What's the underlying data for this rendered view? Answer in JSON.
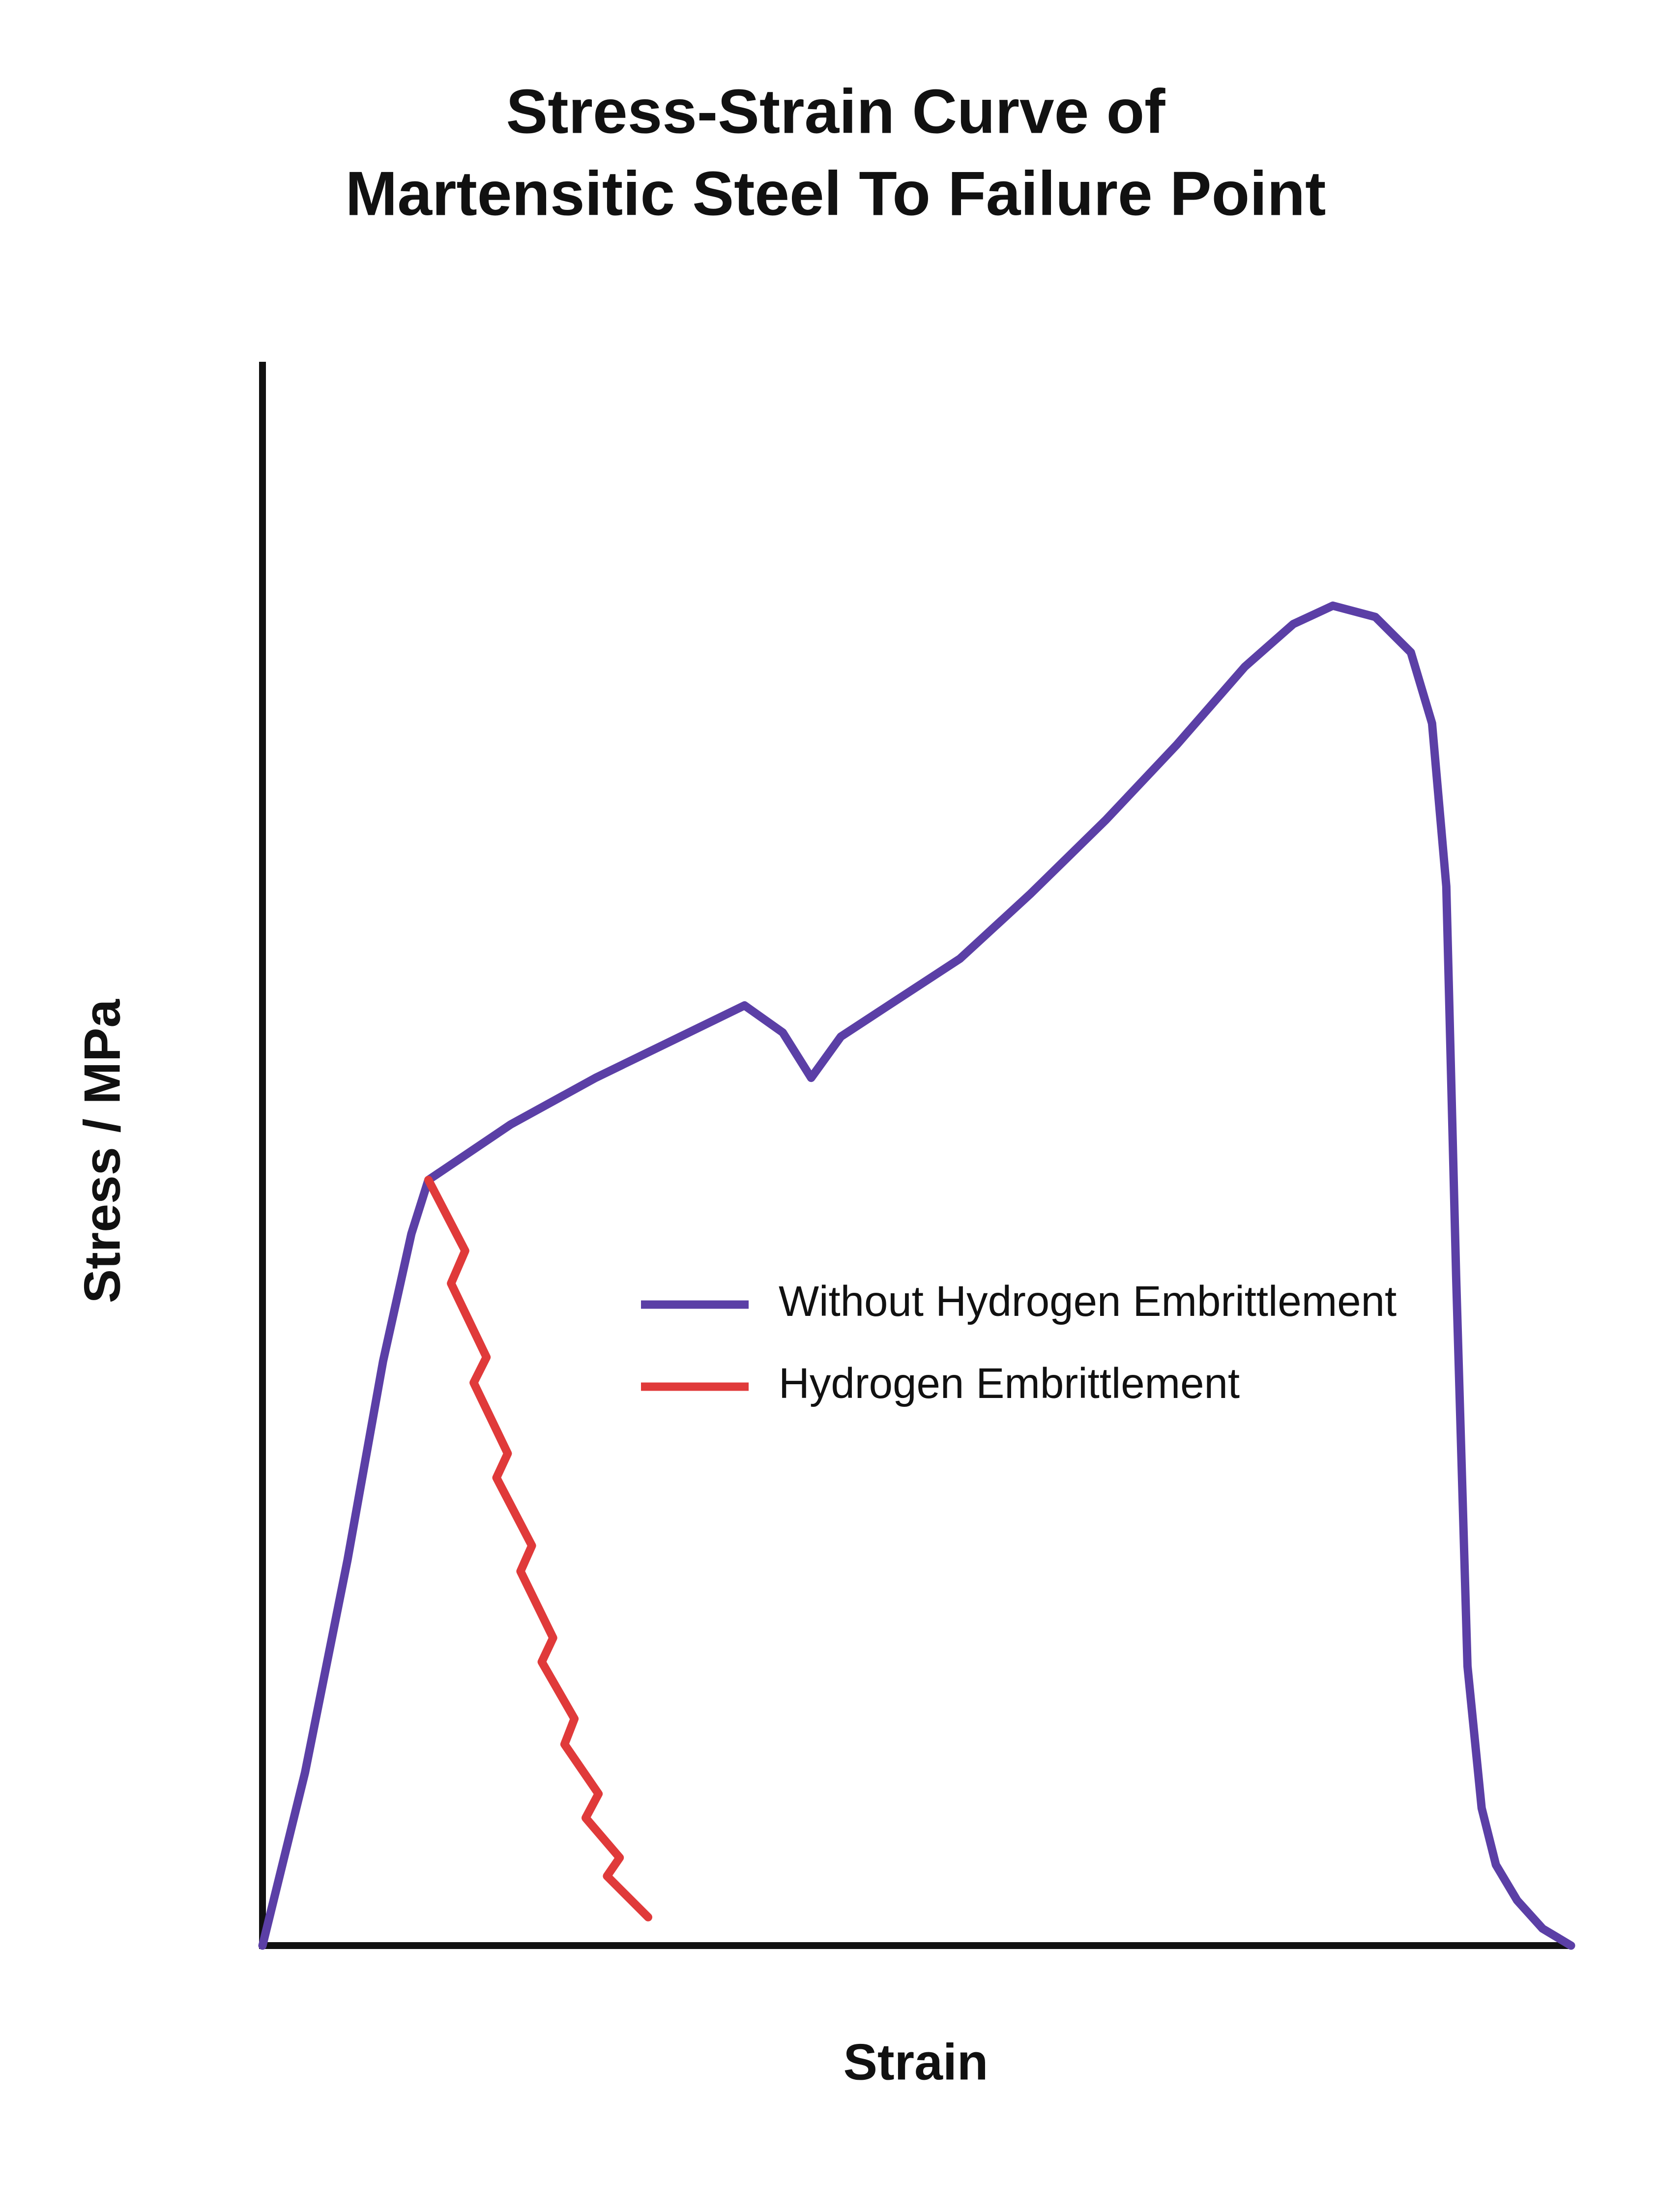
{
  "chart_data": {
    "type": "line",
    "title": [
      "Stress-Strain Curve of",
      "Martensitic Steel To Failure Point"
    ],
    "xlabel": "Strain",
    "ylabel": "Stress / MPa",
    "xlim": [
      0,
      100
    ],
    "ylim": [
      0,
      100
    ],
    "grid": false,
    "legend": "center",
    "series": [
      {
        "name": "Without Hydrogen Embrittlement",
        "color": "#5b3fa6",
        "x": [
          0,
          3.25,
          6.5,
          9.21,
          11.38,
          12.68,
          18.96,
          25.46,
          36.84,
          39.76,
          41.93,
          44.2,
          47.67,
          53.3,
          58.72,
          64.46,
          69.88,
          75.08,
          78.77,
          81.8,
          85.05,
          87.76,
          89.38,
          90.47,
          91.22,
          92.09,
          93.17,
          94.26,
          95.88,
          97.83,
          100
        ],
        "values": [
          0,
          10.92,
          24.35,
          36.88,
          44.94,
          48.34,
          51.84,
          54.79,
          59.36,
          57.65,
          54.79,
          57.39,
          59.27,
          62.31,
          66.43,
          71.08,
          75.83,
          80.75,
          83.44,
          84.6,
          83.89,
          81.65,
          77.17,
          66.88,
          42.26,
          17.64,
          8.68,
          5.1,
          2.86,
          1.07,
          0
        ]
      },
      {
        "name": "Hydrogen Embrittlement",
        "color": "#e03a3a",
        "x": [
          12.68,
          15.49,
          14.41,
          17.12,
          16.14,
          18.74,
          17.88,
          20.59,
          19.72,
          22.21,
          21.34,
          23.84,
          23.08,
          25.68,
          24.7,
          27.3,
          26.33,
          29.47
        ],
        "values": [
          48.34,
          43.87,
          41.81,
          37.15,
          35.54,
          31.07,
          29.54,
          25.25,
          23.63,
          19.43,
          17.91,
          14.32,
          12.71,
          9.58,
          8.06,
          5.55,
          4.39,
          1.79
        ]
      }
    ]
  }
}
